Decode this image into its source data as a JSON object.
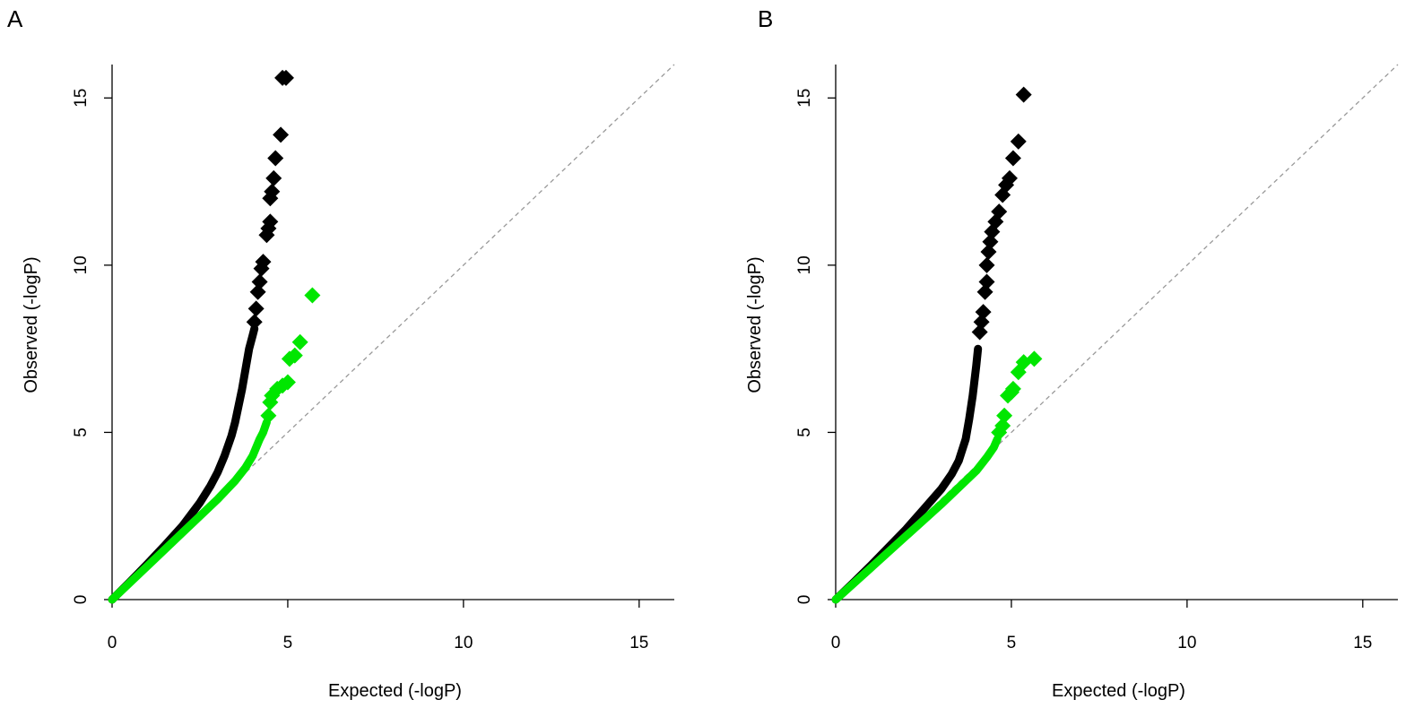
{
  "colors": {
    "observed_unadjusted": "#000000",
    "observed_adjusted": "#00e600",
    "reference_line": "#999999",
    "axes": "#000000"
  },
  "chart_data": [
    {
      "panel_label": "A",
      "type": "scatter",
      "title": "",
      "xlabel": "Expected (-logP)",
      "ylabel": "Observed (-logP)",
      "xlim": [
        0,
        16
      ],
      "ylim": [
        0,
        16
      ],
      "x_ticks": [
        "0",
        "5",
        "10",
        "15"
      ],
      "y_ticks": [
        "0",
        "5",
        "10",
        "15"
      ],
      "marker": "diamond",
      "reference_line": {
        "style": "dashed",
        "x": [
          0,
          16
        ],
        "y": [
          0,
          16
        ]
      },
      "series": [
        {
          "color": "#000000",
          "curve_x": [
            0,
            0.5,
            1.0,
            1.5,
            2.0,
            2.5,
            2.8,
            3.0,
            3.2,
            3.4,
            3.5,
            3.6,
            3.7,
            3.8,
            3.9,
            4.0,
            4.05
          ],
          "curve_y": [
            0,
            0.52,
            1.06,
            1.62,
            2.2,
            2.9,
            3.4,
            3.8,
            4.3,
            4.9,
            5.3,
            5.8,
            6.3,
            6.9,
            7.5,
            7.9,
            8.1
          ],
          "points": [
            {
              "x": 4.05,
              "y": 8.3
            },
            {
              "x": 4.1,
              "y": 8.7
            },
            {
              "x": 4.15,
              "y": 9.2
            },
            {
              "x": 4.2,
              "y": 9.5
            },
            {
              "x": 4.25,
              "y": 9.9
            },
            {
              "x": 4.3,
              "y": 10.1
            },
            {
              "x": 4.4,
              "y": 10.9
            },
            {
              "x": 4.45,
              "y": 11.1
            },
            {
              "x": 4.5,
              "y": 11.3
            },
            {
              "x": 4.5,
              "y": 12.0
            },
            {
              "x": 4.55,
              "y": 12.2
            },
            {
              "x": 4.6,
              "y": 12.6
            },
            {
              "x": 4.65,
              "y": 13.2
            },
            {
              "x": 4.8,
              "y": 13.9
            },
            {
              "x": 4.85,
              "y": 15.6
            },
            {
              "x": 4.95,
              "y": 15.6
            }
          ]
        },
        {
          "color": "#00e600",
          "curve_x": [
            0,
            1.0,
            2.0,
            3.0,
            3.5,
            3.8,
            4.0,
            4.2,
            4.3,
            4.4
          ],
          "curve_y": [
            0,
            1.0,
            2.0,
            3.0,
            3.55,
            3.95,
            4.3,
            4.8,
            5.0,
            5.3
          ],
          "points": [
            {
              "x": 4.45,
              "y": 5.5
            },
            {
              "x": 4.5,
              "y": 5.9
            },
            {
              "x": 4.55,
              "y": 6.1
            },
            {
              "x": 4.7,
              "y": 6.3
            },
            {
              "x": 4.85,
              "y": 6.4
            },
            {
              "x": 5.0,
              "y": 6.5
            },
            {
              "x": 5.05,
              "y": 7.2
            },
            {
              "x": 5.2,
              "y": 7.3
            },
            {
              "x": 5.35,
              "y": 7.7
            },
            {
              "x": 5.7,
              "y": 9.1
            }
          ]
        }
      ]
    },
    {
      "panel_label": "B",
      "type": "scatter",
      "title": "",
      "xlabel": "Expected (-logP)",
      "ylabel": "Observed (-logP)",
      "xlim": [
        0,
        16
      ],
      "ylim": [
        0,
        16
      ],
      "x_ticks": [
        "0",
        "5",
        "10",
        "15"
      ],
      "y_ticks": [
        "0",
        "5",
        "10",
        "15"
      ],
      "marker": "diamond",
      "reference_line": {
        "style": "dashed",
        "x": [
          0,
          16
        ],
        "y": [
          0,
          16
        ]
      },
      "series": [
        {
          "color": "#000000",
          "curve_x": [
            0,
            0.5,
            1.0,
            1.5,
            2.0,
            2.5,
            3.0,
            3.3,
            3.5,
            3.7,
            3.8,
            3.9,
            4.0,
            4.05
          ],
          "curve_y": [
            0,
            0.5,
            1.02,
            1.56,
            2.1,
            2.7,
            3.3,
            3.75,
            4.15,
            4.8,
            5.4,
            6.1,
            7.0,
            7.5
          ],
          "points": [
            {
              "x": 4.1,
              "y": 8.0
            },
            {
              "x": 4.15,
              "y": 8.3
            },
            {
              "x": 4.2,
              "y": 8.6
            },
            {
              "x": 4.25,
              "y": 9.2
            },
            {
              "x": 4.3,
              "y": 9.5
            },
            {
              "x": 4.3,
              "y": 10.0
            },
            {
              "x": 4.35,
              "y": 10.4
            },
            {
              "x": 4.4,
              "y": 10.7
            },
            {
              "x": 4.45,
              "y": 11.0
            },
            {
              "x": 4.55,
              "y": 11.3
            },
            {
              "x": 4.65,
              "y": 11.6
            },
            {
              "x": 4.75,
              "y": 12.1
            },
            {
              "x": 4.85,
              "y": 12.4
            },
            {
              "x": 4.95,
              "y": 12.6
            },
            {
              "x": 5.05,
              "y": 13.2
            },
            {
              "x": 5.2,
              "y": 13.7
            },
            {
              "x": 5.35,
              "y": 15.1
            }
          ]
        },
        {
          "color": "#00e600",
          "curve_x": [
            0,
            1.0,
            2.0,
            3.0,
            3.5,
            4.0,
            4.3,
            4.5,
            4.6
          ],
          "curve_y": [
            0,
            0.95,
            1.9,
            2.85,
            3.35,
            3.85,
            4.25,
            4.55,
            4.8
          ],
          "points": [
            {
              "x": 4.65,
              "y": 5.0
            },
            {
              "x": 4.75,
              "y": 5.2
            },
            {
              "x": 4.8,
              "y": 5.5
            },
            {
              "x": 4.9,
              "y": 6.1
            },
            {
              "x": 5.0,
              "y": 6.2
            },
            {
              "x": 5.05,
              "y": 6.3
            },
            {
              "x": 5.2,
              "y": 6.8
            },
            {
              "x": 5.35,
              "y": 7.1
            },
            {
              "x": 5.65,
              "y": 7.2
            }
          ]
        }
      ]
    }
  ]
}
